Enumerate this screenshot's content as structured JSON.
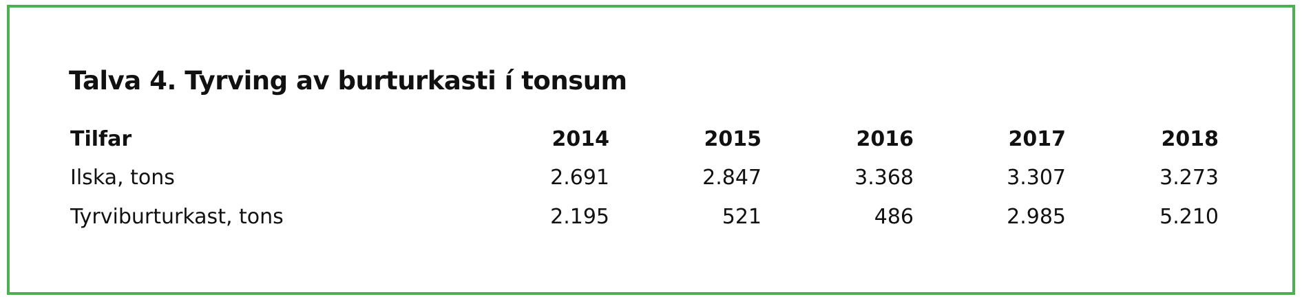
{
  "title": "Talva 4. Tyrving av burturkasti í tonsum",
  "table": {
    "header": [
      "Tilfar",
      "2014",
      "2015",
      "2016",
      "2017",
      "2018"
    ],
    "rows": [
      [
        "Ilska, tons",
        "2.691",
        "2.847",
        "3.368",
        "3.307",
        "3.273"
      ],
      [
        "Tyrviburturkast, tons",
        "2.195",
        "521",
        "486",
        "2.985",
        "5.210"
      ]
    ]
  }
}
